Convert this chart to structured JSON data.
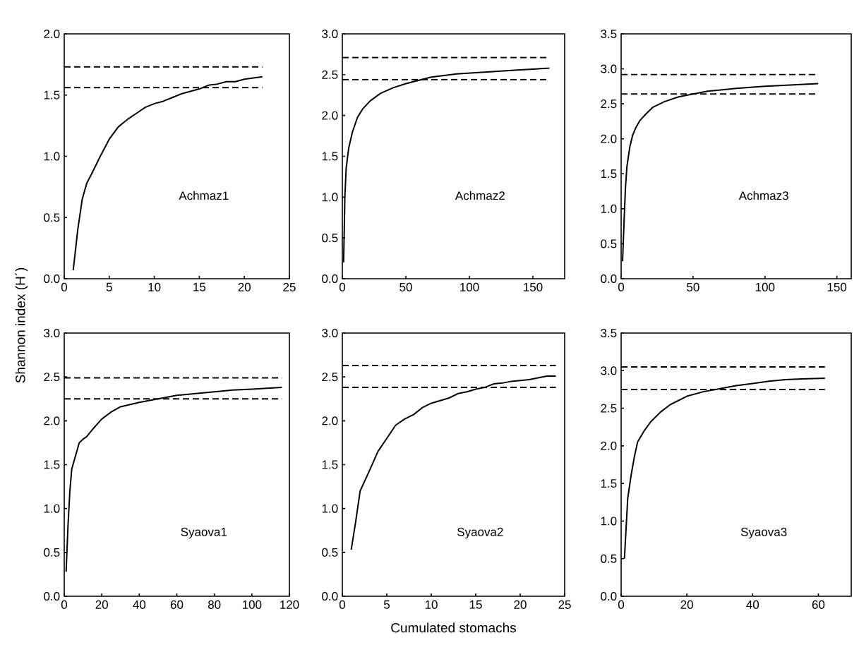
{
  "chart_data": [
    {
      "type": "line",
      "ylabel": "Shannon index (H´)",
      "annotations": [
        "Achmaz1"
      ],
      "xlim": [
        0,
        25
      ],
      "xticks": [
        0,
        5,
        10,
        15,
        20,
        25
      ],
      "ylim": [
        0,
        2
      ],
      "yticks": [
        {
          "value": 0,
          "label": "0.0"
        },
        {
          "value": 0.5,
          "label": "0.5"
        },
        {
          "value": 1,
          "label": "1.0"
        },
        {
          "value": 1.5,
          "label": "1.5"
        },
        {
          "value": 2,
          "label": "2.0"
        }
      ],
      "grid": false,
      "line_style": "solid",
      "marker": "none",
      "ref_lines": [
        {
          "axis": "y",
          "value": 1.73,
          "line_style": "dashed"
        },
        {
          "axis": "y",
          "value": 1.56,
          "line_style": "dashed"
        }
      ],
      "series": [
        {
          "color": "#000000",
          "x": [
            1,
            1.5,
            2,
            2.5,
            3,
            4,
            5,
            6,
            7,
            8,
            9,
            10,
            11,
            12,
            13,
            14,
            15,
            16,
            17,
            18,
            19,
            20,
            21,
            22
          ],
          "values": [
            0.07,
            0.4,
            0.65,
            0.78,
            0.85,
            1.0,
            1.14,
            1.24,
            1.3,
            1.35,
            1.4,
            1.43,
            1.45,
            1.48,
            1.51,
            1.53,
            1.55,
            1.58,
            1.59,
            1.61,
            1.61,
            1.63,
            1.64,
            1.65
          ]
        }
      ]
    },
    {
      "type": "line",
      "annotations": [
        "Achmaz2"
      ],
      "xlim": [
        0,
        175
      ],
      "xticks": [
        0,
        50,
        100,
        150
      ],
      "ylim": [
        0,
        3
      ],
      "yticks": [
        {
          "value": 0,
          "label": "0.0"
        },
        {
          "value": 0.5,
          "label": "0.5"
        },
        {
          "value": 1,
          "label": "1.0"
        },
        {
          "value": 1.5,
          "label": "1.5"
        },
        {
          "value": 2,
          "label": "2.0"
        },
        {
          "value": 2.5,
          "label": "2.5"
        },
        {
          "value": 3,
          "label": "3.0"
        }
      ],
      "grid": false,
      "line_style": "solid",
      "marker": "none",
      "ref_lines": [
        {
          "axis": "y",
          "value": 2.71,
          "line_style": "dashed"
        },
        {
          "axis": "y",
          "value": 2.44,
          "line_style": "dashed"
        }
      ],
      "series": [
        {
          "color": "#000000",
          "x": [
            1,
            2,
            3,
            5,
            8,
            12,
            16,
            22,
            30,
            40,
            50,
            60,
            70,
            80,
            90,
            100,
            120,
            140,
            163
          ],
          "values": [
            0.2,
            1.0,
            1.35,
            1.6,
            1.8,
            1.98,
            2.08,
            2.18,
            2.27,
            2.34,
            2.39,
            2.43,
            2.47,
            2.49,
            2.51,
            2.52,
            2.54,
            2.56,
            2.58
          ]
        }
      ]
    },
    {
      "type": "line",
      "annotations": [
        "Achmaz3"
      ],
      "xlim": [
        0,
        160
      ],
      "xticks": [
        0,
        50,
        100,
        150
      ],
      "ylim": [
        0,
        3.5
      ],
      "yticks": [
        {
          "value": 0,
          "label": "0.0"
        },
        {
          "value": 0.5,
          "label": "0.5"
        },
        {
          "value": 1,
          "label": "1.0"
        },
        {
          "value": 1.5,
          "label": "1.5"
        },
        {
          "value": 2,
          "label": "2.0"
        },
        {
          "value": 2.5,
          "label": "2.5"
        },
        {
          "value": 3,
          "label": "3.0"
        },
        {
          "value": 3.5,
          "label": "3.5"
        }
      ],
      "grid": false,
      "line_style": "solid",
      "marker": "none",
      "ref_lines": [
        {
          "axis": "y",
          "value": 2.92,
          "line_style": "dashed"
        },
        {
          "axis": "y",
          "value": 2.64,
          "line_style": "dashed"
        }
      ],
      "series": [
        {
          "color": "#000000",
          "x": [
            1,
            2,
            3,
            4,
            6,
            8,
            10,
            13,
            17,
            22,
            30,
            40,
            50,
            60,
            70,
            80,
            100,
            120,
            137
          ],
          "values": [
            0.25,
            0.8,
            1.3,
            1.6,
            1.88,
            2.05,
            2.15,
            2.26,
            2.35,
            2.45,
            2.53,
            2.6,
            2.64,
            2.68,
            2.7,
            2.72,
            2.75,
            2.77,
            2.79
          ]
        }
      ]
    },
    {
      "type": "line",
      "annotations": [
        "Syaova1"
      ],
      "xlim": [
        0,
        120
      ],
      "xticks": [
        0,
        20,
        40,
        60,
        80,
        100,
        120
      ],
      "ylim": [
        0,
        3
      ],
      "yticks": [
        {
          "value": 0,
          "label": "0.0"
        },
        {
          "value": 0.5,
          "label": "0.5"
        },
        {
          "value": 1,
          "label": "1.0"
        },
        {
          "value": 1.5,
          "label": "1.5"
        },
        {
          "value": 2,
          "label": "2.0"
        },
        {
          "value": 2.5,
          "label": "2.5"
        },
        {
          "value": 3,
          "label": "3.0"
        }
      ],
      "grid": false,
      "line_style": "solid",
      "marker": "none",
      "ref_lines": [
        {
          "axis": "y",
          "value": 2.49,
          "line_style": "dashed"
        },
        {
          "axis": "y",
          "value": 2.25,
          "line_style": "dashed"
        }
      ],
      "series": [
        {
          "color": "#000000",
          "x": [
            1,
            2,
            3,
            4,
            6,
            8,
            10,
            12,
            15,
            20,
            25,
            30,
            40,
            50,
            60,
            70,
            80,
            90,
            100,
            116
          ],
          "values": [
            0.28,
            0.8,
            1.2,
            1.45,
            1.6,
            1.75,
            1.79,
            1.82,
            1.9,
            2.02,
            2.1,
            2.16,
            2.21,
            2.25,
            2.29,
            2.31,
            2.33,
            2.35,
            2.36,
            2.38
          ]
        }
      ]
    },
    {
      "type": "line",
      "xlabel": "Cumulated stomachs",
      "annotations": [
        "Syaova2"
      ],
      "xlim": [
        0,
        25
      ],
      "xticks": [
        0,
        5,
        10,
        15,
        20,
        25
      ],
      "ylim": [
        0,
        3
      ],
      "yticks": [
        {
          "value": 0,
          "label": "0.0"
        },
        {
          "value": 0.5,
          "label": "0.5"
        },
        {
          "value": 1,
          "label": "1.0"
        },
        {
          "value": 1.5,
          "label": "1.5"
        },
        {
          "value": 2,
          "label": "2.0"
        },
        {
          "value": 2.5,
          "label": "2.5"
        },
        {
          "value": 3,
          "label": "3.0"
        }
      ],
      "grid": false,
      "line_style": "solid",
      "marker": "none",
      "ref_lines": [
        {
          "axis": "y",
          "value": 2.63,
          "line_style": "dashed"
        },
        {
          "axis": "y",
          "value": 2.38,
          "line_style": "dashed"
        }
      ],
      "series": [
        {
          "color": "#000000",
          "x": [
            1,
            1.5,
            2,
            3,
            4,
            5,
            6,
            7,
            8,
            9,
            10,
            11,
            12,
            13,
            14,
            15,
            16,
            17,
            18,
            19,
            20,
            21,
            22,
            23,
            24
          ],
          "values": [
            0.53,
            0.85,
            1.2,
            1.42,
            1.65,
            1.8,
            1.95,
            2.02,
            2.07,
            2.15,
            2.2,
            2.23,
            2.26,
            2.31,
            2.33,
            2.36,
            2.38,
            2.42,
            2.43,
            2.45,
            2.46,
            2.47,
            2.49,
            2.51,
            2.51
          ]
        }
      ]
    },
    {
      "type": "line",
      "annotations": [
        "Syaova3"
      ],
      "xlim": [
        0,
        70
      ],
      "xticks": [
        0,
        20,
        40,
        60
      ],
      "ylim": [
        0,
        3.5
      ],
      "yticks": [
        {
          "value": 0,
          "label": "0.0"
        },
        {
          "value": 0.5,
          "label": "0.5"
        },
        {
          "value": 1,
          "label": "1.0"
        },
        {
          "value": 1.5,
          "label": "1.5"
        },
        {
          "value": 2,
          "label": "2.0"
        },
        {
          "value": 2.5,
          "label": "2.5"
        },
        {
          "value": 3,
          "label": "3.0"
        },
        {
          "value": 3.5,
          "label": "3.5"
        }
      ],
      "grid": false,
      "line_style": "solid",
      "marker": "none",
      "ref_lines": [
        {
          "axis": "y",
          "value": 3.05,
          "line_style": "dashed"
        },
        {
          "axis": "y",
          "value": 2.75,
          "line_style": "dashed"
        }
      ],
      "series": [
        {
          "color": "#000000",
          "x": [
            1,
            2,
            3,
            4,
            5,
            7,
            9,
            12,
            15,
            20,
            25,
            30,
            35,
            40,
            45,
            50,
            55,
            62
          ],
          "values": [
            0.5,
            1.3,
            1.6,
            1.85,
            2.05,
            2.2,
            2.32,
            2.45,
            2.55,
            2.66,
            2.72,
            2.76,
            2.8,
            2.83,
            2.86,
            2.88,
            2.89,
            2.9
          ]
        }
      ]
    }
  ]
}
